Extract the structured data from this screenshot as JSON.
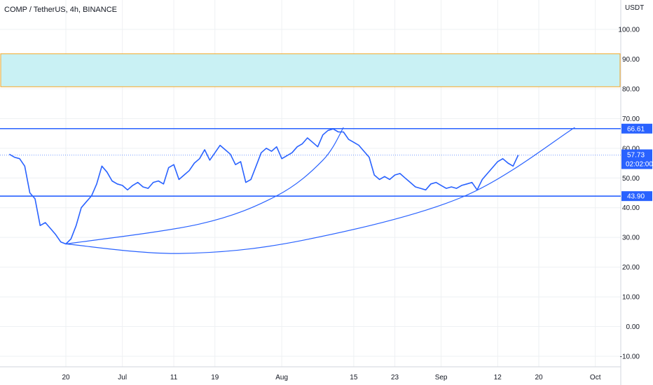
{
  "header": {
    "title": "COMP / TetherUS, 4h, BINANCE"
  },
  "axis": {
    "unit": "USDT"
  },
  "colors": {
    "accent": "#2962ff",
    "zone_fill": "#c9f1f4",
    "zone_border": "#f5a623",
    "grid": "#eef0f3",
    "text": "#131722"
  },
  "chart_data": {
    "type": "line",
    "title": "COMP / TetherUS, 4h, BINANCE",
    "ylabel": "USDT",
    "ylim": [
      -12,
      108
    ],
    "y_ticks": [
      "100.00",
      "90.00",
      "80.00",
      "70.00",
      "60.00",
      "50.00",
      "40.00",
      "30.00",
      "20.00",
      "10.00",
      "0.00",
      "-10.00"
    ],
    "x_tick_labels": [
      "20",
      "Jul",
      "11",
      "19",
      "Aug",
      "15",
      "23",
      "Sep",
      "12",
      "20",
      "Oct"
    ],
    "x_tick_dates": [
      "2022-06-20",
      "2022-07-01",
      "2022-07-11",
      "2022-07-19",
      "2022-08-01",
      "2022-08-15",
      "2022-08-23",
      "2022-09-01",
      "2022-09-12",
      "2022-09-20",
      "2022-10-01"
    ],
    "grid": true,
    "series": [
      {
        "points": [
          [
            "2022-06-09",
            58.0
          ],
          [
            "2022-06-10",
            57.0
          ],
          [
            "2022-06-11",
            56.5
          ],
          [
            "2022-06-12",
            54.0
          ],
          [
            "2022-06-13",
            45.0
          ],
          [
            "2022-06-14",
            43.0
          ],
          [
            "2022-06-15",
            34.0
          ],
          [
            "2022-06-16",
            35.0
          ],
          [
            "2022-06-17",
            33.0
          ],
          [
            "2022-06-18",
            31.0
          ],
          [
            "2022-06-19",
            28.5
          ],
          [
            "2022-06-20",
            27.8
          ],
          [
            "2022-06-21",
            29.5
          ],
          [
            "2022-06-22",
            34.0
          ],
          [
            "2022-06-23",
            40.0
          ],
          [
            "2022-06-24",
            42.0
          ],
          [
            "2022-06-25",
            44.0
          ],
          [
            "2022-06-26",
            48.0
          ],
          [
            "2022-06-27",
            54.0
          ],
          [
            "2022-06-28",
            52.0
          ],
          [
            "2022-06-29",
            49.0
          ],
          [
            "2022-06-30",
            48.0
          ],
          [
            "2022-07-01",
            47.5
          ],
          [
            "2022-07-02",
            46.0
          ],
          [
            "2022-07-03",
            47.5
          ],
          [
            "2022-07-04",
            48.5
          ],
          [
            "2022-07-05",
            47.0
          ],
          [
            "2022-07-06",
            46.5
          ],
          [
            "2022-07-07",
            48.5
          ],
          [
            "2022-07-08",
            49.0
          ],
          [
            "2022-07-09",
            48.0
          ],
          [
            "2022-07-10",
            53.5
          ],
          [
            "2022-07-11",
            54.5
          ],
          [
            "2022-07-12",
            49.5
          ],
          [
            "2022-07-13",
            51.0
          ],
          [
            "2022-07-14",
            52.5
          ],
          [
            "2022-07-15",
            55.0
          ],
          [
            "2022-07-16",
            56.5
          ],
          [
            "2022-07-17",
            59.5
          ],
          [
            "2022-07-18",
            56.0
          ],
          [
            "2022-07-19",
            58.5
          ],
          [
            "2022-07-20",
            61.0
          ],
          [
            "2022-07-21",
            59.5
          ],
          [
            "2022-07-22",
            58.0
          ],
          [
            "2022-07-23",
            54.5
          ],
          [
            "2022-07-24",
            55.5
          ],
          [
            "2022-07-25",
            48.5
          ],
          [
            "2022-07-26",
            49.5
          ],
          [
            "2022-07-27",
            54.0
          ],
          [
            "2022-07-28",
            58.5
          ],
          [
            "2022-07-29",
            60.0
          ],
          [
            "2022-07-30",
            59.0
          ],
          [
            "2022-07-31",
            60.5
          ],
          [
            "2022-08-01",
            56.5
          ],
          [
            "2022-08-02",
            57.5
          ],
          [
            "2022-08-03",
            58.5
          ],
          [
            "2022-08-04",
            60.5
          ],
          [
            "2022-08-05",
            61.5
          ],
          [
            "2022-08-06",
            63.5
          ],
          [
            "2022-08-07",
            62.0
          ],
          [
            "2022-08-08",
            60.5
          ],
          [
            "2022-08-09",
            64.5
          ],
          [
            "2022-08-10",
            66.0
          ],
          [
            "2022-08-11",
            66.5
          ],
          [
            "2022-08-12",
            65.5
          ],
          [
            "2022-08-13",
            65.5
          ],
          [
            "2022-08-14",
            63.0
          ],
          [
            "2022-08-15",
            62.0
          ],
          [
            "2022-08-16",
            61.0
          ],
          [
            "2022-08-17",
            59.0
          ],
          [
            "2022-08-18",
            57.0
          ],
          [
            "2022-08-19",
            51.0
          ],
          [
            "2022-08-20",
            49.5
          ],
          [
            "2022-08-21",
            50.5
          ],
          [
            "2022-08-22",
            49.5
          ],
          [
            "2022-08-23",
            51.0
          ],
          [
            "2022-08-24",
            51.5
          ],
          [
            "2022-08-25",
            50.0
          ],
          [
            "2022-08-26",
            48.5
          ],
          [
            "2022-08-27",
            47.0
          ],
          [
            "2022-08-28",
            46.5
          ],
          [
            "2022-08-29",
            46.0
          ],
          [
            "2022-08-30",
            48.0
          ],
          [
            "2022-08-31",
            48.5
          ],
          [
            "2022-09-01",
            47.5
          ],
          [
            "2022-09-02",
            46.5
          ],
          [
            "2022-09-03",
            47.0
          ],
          [
            "2022-09-04",
            46.5
          ],
          [
            "2022-09-05",
            47.5
          ],
          [
            "2022-09-06",
            48.0
          ],
          [
            "2022-09-07",
            48.5
          ],
          [
            "2022-09-08",
            46.0
          ],
          [
            "2022-09-09",
            49.5
          ],
          [
            "2022-09-10",
            51.5
          ],
          [
            "2022-09-11",
            53.5
          ],
          [
            "2022-09-12",
            55.5
          ],
          [
            "2022-09-13",
            56.5
          ],
          [
            "2022-09-14",
            55.0
          ],
          [
            "2022-09-15",
            54.0
          ],
          [
            "2022-09-16",
            57.73
          ]
        ]
      }
    ],
    "horizontal_levels": [
      {
        "value": 66.61,
        "label": "66.61"
      },
      {
        "value": 43.9,
        "label": "43.90"
      }
    ],
    "last_price": {
      "value": 57.73,
      "label": "57.73",
      "countdown": "02:02:00"
    },
    "zone": {
      "from": 80.7,
      "to": 91.8
    },
    "curves": [
      {
        "points": [
          [
            "2022-06-20",
            27.8
          ],
          [
            "2022-07-16",
            34.5
          ],
          [
            "2022-07-31",
            44.0
          ],
          [
            "2022-08-09",
            56.0
          ],
          [
            "2022-08-13",
            67.0
          ]
        ]
      },
      {
        "points": [
          [
            "2022-06-20",
            27.8
          ],
          [
            "2022-07-12",
            24.6
          ],
          [
            "2022-08-05",
            29.0
          ],
          [
            "2022-09-05",
            43.5
          ],
          [
            "2022-09-27",
            67.0
          ]
        ]
      }
    ]
  }
}
